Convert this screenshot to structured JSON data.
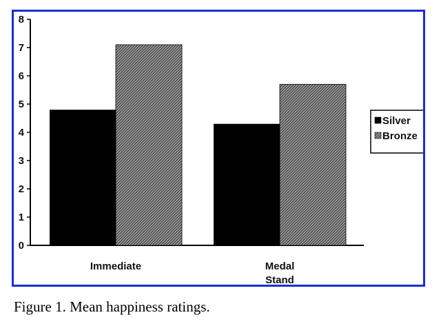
{
  "caption": "Figure 1. Mean happiness ratings.",
  "colors": {
    "border": "#1a2cd8",
    "silver": "#000000",
    "bronze_pattern": "#6b6b6b"
  },
  "chart_data": {
    "type": "bar",
    "title": "",
    "xlabel": "",
    "ylabel": "",
    "categories": [
      [
        "Immediate"
      ],
      [
        "Medal",
        "Stand"
      ]
    ],
    "series": [
      {
        "name": "Silver",
        "values": [
          4.8,
          4.3
        ]
      },
      {
        "name": "Bronze",
        "values": [
          7.1,
          5.7
        ]
      }
    ],
    "ylim": [
      0,
      8
    ],
    "yticks": [
      "0",
      "1",
      "2",
      "3",
      "4",
      "5",
      "6",
      "7",
      "8"
    ],
    "legend": {
      "position": "right",
      "entries": [
        "Silver",
        "Bronze"
      ]
    },
    "grid": false
  }
}
